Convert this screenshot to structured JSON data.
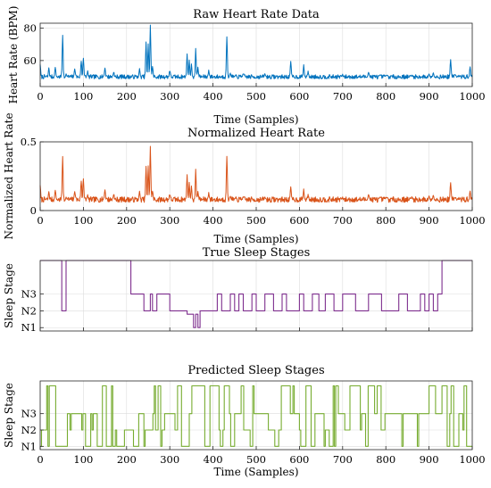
{
  "chart_data": [
    {
      "type": "line",
      "title": "Raw Heart Rate Data",
      "xlabel": "Time (Samples)",
      "ylabel": "Heart Rate (BPM)",
      "xlim": [
        0,
        1000
      ],
      "ylim": [
        44,
        83
      ],
      "xticks": [
        0,
        100,
        200,
        300,
        400,
        500,
        600,
        700,
        800,
        900,
        1000
      ],
      "yticks": [
        60,
        80
      ],
      "ytick_labels": [
        "60",
        "80"
      ],
      "grid": true,
      "color": "#0072BD",
      "baseline": 50,
      "noise": 1.3,
      "peaks": [
        [
          0,
          58
        ],
        [
          20,
          55
        ],
        [
          35,
          56
        ],
        [
          52,
          76
        ],
        [
          60,
          52
        ],
        [
          80,
          55
        ],
        [
          95,
          60
        ],
        [
          100,
          62
        ],
        [
          110,
          54
        ],
        [
          150,
          56
        ],
        [
          170,
          53
        ],
        [
          230,
          55
        ],
        [
          245,
          72
        ],
        [
          250,
          70
        ],
        [
          255,
          82
        ],
        [
          260,
          57
        ],
        [
          300,
          54
        ],
        [
          340,
          64
        ],
        [
          345,
          60
        ],
        [
          350,
          58
        ],
        [
          360,
          68
        ],
        [
          365,
          56
        ],
        [
          390,
          54
        ],
        [
          432,
          75
        ],
        [
          440,
          52
        ],
        [
          470,
          52
        ],
        [
          520,
          52
        ],
        [
          580,
          60
        ],
        [
          610,
          57
        ],
        [
          620,
          53
        ],
        [
          700,
          51
        ],
        [
          760,
          53
        ],
        [
          800,
          51
        ],
        [
          860,
          51
        ],
        [
          900,
          52
        ],
        [
          910,
          53
        ],
        [
          950,
          61
        ],
        [
          960,
          52
        ],
        [
          995,
          56
        ]
      ],
      "seed": 7
    },
    {
      "type": "line",
      "title": "Normalized Heart Rate",
      "xlabel": "Time (Samples)",
      "ylabel": "Normalized Heart Rate",
      "xlim": [
        0,
        1000
      ],
      "ylim": [
        0,
        0.5
      ],
      "xticks": [
        0,
        100,
        200,
        300,
        400,
        500,
        600,
        700,
        800,
        900,
        1000
      ],
      "yticks": [
        0,
        0.5
      ],
      "ytick_labels": [
        "0",
        "0.5"
      ],
      "grid": true,
      "color": "#D95319",
      "baseline": 0.08,
      "noise": 0.02,
      "peaks": [
        [
          0,
          0.19
        ],
        [
          20,
          0.13
        ],
        [
          35,
          0.15
        ],
        [
          52,
          0.4
        ],
        [
          60,
          0.1
        ],
        [
          80,
          0.14
        ],
        [
          95,
          0.22
        ],
        [
          100,
          0.24
        ],
        [
          110,
          0.12
        ],
        [
          150,
          0.16
        ],
        [
          170,
          0.12
        ],
        [
          230,
          0.14
        ],
        [
          245,
          0.33
        ],
        [
          250,
          0.32
        ],
        [
          255,
          0.47
        ],
        [
          260,
          0.15
        ],
        [
          300,
          0.12
        ],
        [
          340,
          0.26
        ],
        [
          345,
          0.2
        ],
        [
          350,
          0.18
        ],
        [
          360,
          0.31
        ],
        [
          365,
          0.14
        ],
        [
          390,
          0.13
        ],
        [
          432,
          0.4
        ],
        [
          440,
          0.1
        ],
        [
          470,
          0.1
        ],
        [
          520,
          0.1
        ],
        [
          580,
          0.18
        ],
        [
          610,
          0.15
        ],
        [
          620,
          0.11
        ],
        [
          700,
          0.09
        ],
        [
          760,
          0.12
        ],
        [
          800,
          0.1
        ],
        [
          860,
          0.1
        ],
        [
          900,
          0.11
        ],
        [
          910,
          0.12
        ],
        [
          950,
          0.21
        ],
        [
          960,
          0.1
        ],
        [
          995,
          0.14
        ]
      ],
      "seed": 7
    },
    {
      "type": "line",
      "title": "True Sleep Stages",
      "xlabel": "",
      "ylabel": "Sleep Stage",
      "xlim": [
        0,
        1000
      ],
      "ylim": [
        0.8,
        5.0
      ],
      "xticks": [
        0,
        100,
        200,
        300,
        400,
        500,
        600,
        700,
        800,
        900,
        1000
      ],
      "xtick_labels_shown": false,
      "yticks": [
        1,
        2,
        3
      ],
      "ytick_labels": [
        "N1",
        "N2",
        "N3"
      ],
      "grid": true,
      "color": "#7E2F8E",
      "steps": [
        [
          0,
          5
        ],
        [
          50,
          2
        ],
        [
          60,
          5
        ],
        [
          210,
          3
        ],
        [
          240,
          2
        ],
        [
          255,
          3
        ],
        [
          260,
          2
        ],
        [
          270,
          3
        ],
        [
          300,
          2
        ],
        [
          340,
          1.8
        ],
        [
          355,
          1
        ],
        [
          360,
          1.8
        ],
        [
          365,
          1
        ],
        [
          370,
          2
        ],
        [
          410,
          3
        ],
        [
          420,
          2
        ],
        [
          440,
          3
        ],
        [
          450,
          2
        ],
        [
          460,
          3
        ],
        [
          470,
          2
        ],
        [
          490,
          3
        ],
        [
          500,
          2
        ],
        [
          520,
          3
        ],
        [
          540,
          2
        ],
        [
          560,
          3
        ],
        [
          570,
          2
        ],
        [
          600,
          3
        ],
        [
          610,
          2
        ],
        [
          630,
          3
        ],
        [
          645,
          2
        ],
        [
          660,
          3
        ],
        [
          680,
          2
        ],
        [
          700,
          3
        ],
        [
          730,
          2
        ],
        [
          760,
          3
        ],
        [
          790,
          2
        ],
        [
          830,
          3
        ],
        [
          850,
          2
        ],
        [
          880,
          3
        ],
        [
          890,
          2
        ],
        [
          900,
          3
        ],
        [
          910,
          2
        ],
        [
          920,
          3
        ],
        [
          930,
          5
        ],
        [
          1000,
          5
        ]
      ]
    },
    {
      "type": "line",
      "title": "Predicted Sleep Stages",
      "xlabel": "Time (Samples)",
      "ylabel": "Sleep Stage",
      "xlim": [
        0,
        1000
      ],
      "ylim": [
        0.8,
        5.0
      ],
      "xticks": [
        0,
        100,
        200,
        300,
        400,
        500,
        600,
        700,
        800,
        900,
        1000
      ],
      "yticks": [
        1,
        2,
        3
      ],
      "ytick_labels": [
        "N1",
        "N2",
        "N3"
      ],
      "grid": true,
      "color": "#77AC30",
      "seed": 21
    }
  ]
}
